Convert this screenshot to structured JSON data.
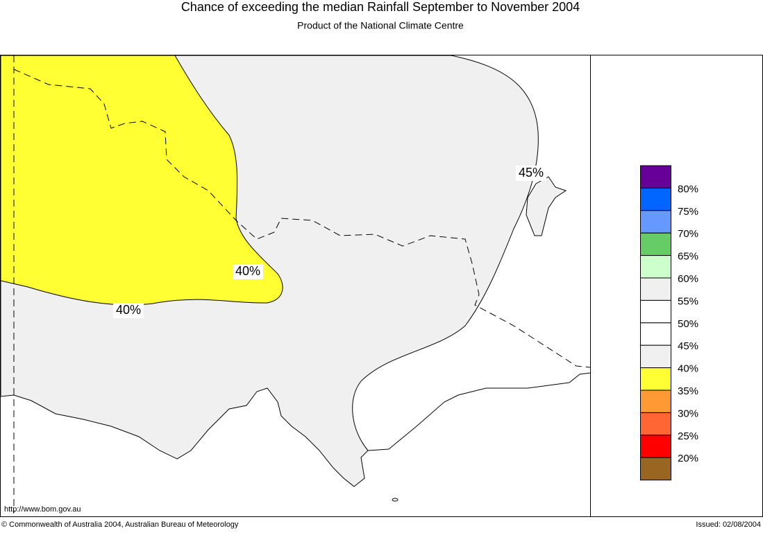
{
  "header": {
    "title": "Chance of exceeding the median Rainfall September to November 2004",
    "subtitle": "Product of the National Climate Centre"
  },
  "map": {
    "contour_labels": [
      "45%",
      "40%",
      "40%"
    ]
  },
  "legend": {
    "colors": [
      "#660099",
      "#0066ff",
      "#6699ff",
      "#66cc66",
      "#ccffcc",
      "#f0f0f0",
      "#ffffff",
      "#ffffff",
      "#f0f0f0",
      "#ffff33",
      "#ff9933",
      "#ff6633",
      "#ff0000",
      "#996622"
    ],
    "labels": [
      "80%",
      "75%",
      "70%",
      "65%",
      "60%",
      "55%",
      "50%",
      "45%",
      "40%",
      "35%",
      "30%",
      "25%",
      "20%"
    ]
  },
  "footer": {
    "url": "http://www.bom.gov.au",
    "copyright": "© Commonwealth of Australia 2004, Australian Bureau of Meteorology",
    "issued": "Issued: 02/08/2004"
  }
}
